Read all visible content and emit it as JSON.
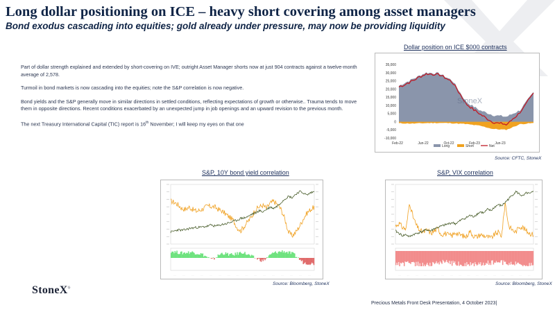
{
  "header": {
    "title": "Long dollar positioning on ICE – heavy short covering among asset managers",
    "subtitle": "Bond exodus cascading into equities; gold already under pressure, may now be providing liquidity"
  },
  "commentary": {
    "p1": "Part of dollar strength explained and extended by short-covering on IVE; outright Asset Manager shorts now at just 904 contracts against a twelve-month average of 2,578.",
    "p2": "Turmoil in bond markets is now cascading into the equities; note the S&P correlation is now negative.",
    "p3": " Bond yields and the S&P generally move in similar directions in settled conditions, reflecting expectations of growth or otherwise.. Trauma tends to move them in opposite directions.  Recent conditions exacerbated by an unexpected jump in job openings and an upward revision to the previous month.",
    "p4_pre": "The next Treasury International Capital (TIC) report is 16",
    "p4_sup": "th",
    "p4_post": " November; I will keep my eyes on that one"
  },
  "charts": {
    "dollar": {
      "title": "Dollar position on ICE $000 contracts",
      "source": "Source:  CFTC, StoneX",
      "watermark": "StoneX"
    },
    "sp_bond": {
      "title": "S&P, 10Y bond yield correlation",
      "source": "Source:  Bloomberg,  StoneX"
    },
    "sp_vix": {
      "title": "S&P, VIX correlation",
      "source": "Source:  Bloomberg,  StoneX"
    }
  },
  "chart_data": [
    {
      "type": "area",
      "title": "Dollar position on ICE $000 contracts",
      "x": [
        "Feb-22",
        "Apr-22",
        "Jun-22",
        "Aug-22",
        "Oct-22",
        "Dec-22",
        "Feb-23",
        "Apr-23",
        "Jun-23",
        "Aug-23",
        "Sep-23"
      ],
      "ylim": [
        -10000,
        35000
      ],
      "yticks": [
        35000,
        30000,
        25000,
        20000,
        15000,
        10000,
        5000,
        0,
        -5000,
        -10000
      ],
      "ytick_labels": [
        "35,000",
        "30,000",
        "25,000",
        "20,000",
        "15,000",
        "10,000",
        "5,000",
        "0",
        "-5,000",
        "-10,000"
      ],
      "xtick_labels": [
        "Feb-22",
        "Jun-22",
        "Oct-22",
        "Feb-23",
        "Jun-23"
      ],
      "series": [
        {
          "name": "Long",
          "values": [
            22000,
            26000,
            30000,
            29500,
            25000,
            12000,
            7000,
            4000,
            3000,
            7000,
            18000
          ]
        },
        {
          "name": "Short",
          "values": [
            -1000,
            -1200,
            -900,
            -800,
            -1000,
            -1500,
            -2500,
            -4500,
            -5000,
            -1500,
            -900
          ]
        },
        {
          "name": "Net",
          "values": [
            21000,
            24800,
            29100,
            28700,
            24000,
            10500,
            4500,
            -500,
            -2000,
            5500,
            17100
          ]
        }
      ],
      "legend": "bottom",
      "colors": {
        "Long": "#8a95ab",
        "Short": "#f0a220",
        "Net": "#c01a25"
      }
    },
    {
      "type": "line",
      "title": "S&P, 10Y bond yield correlation",
      "series": [
        {
          "name": "",
          "values": [
            72,
            70,
            66,
            60,
            58,
            62,
            58,
            55,
            57,
            60,
            64,
            63,
            62,
            58,
            55,
            50,
            45,
            40,
            28,
            22,
            30,
            38,
            46,
            58,
            62,
            65,
            60,
            68,
            72,
            66,
            58,
            42,
            20,
            14,
            20,
            30,
            42,
            52,
            58,
            62
          ]
        },
        {
          "name": "",
          "values": [
            20,
            22,
            24,
            23,
            24,
            26,
            27,
            28,
            28,
            29,
            30,
            32,
            30,
            31,
            33,
            34,
            36,
            38,
            40,
            43,
            44,
            46,
            50,
            52,
            56,
            54,
            58,
            62,
            60,
            64,
            70,
            76,
            80,
            78,
            84,
            88,
            86,
            82,
            86,
            88
          ]
        }
      ],
      "colors": [
        "#f0a020",
        "#4a5e2c"
      ]
    },
    {
      "type": "line",
      "title": "S&P, VIX correlation",
      "series": [
        {
          "name": "",
          "values": [
            30,
            35,
            28,
            25,
            70,
            45,
            30,
            22,
            20,
            24,
            18,
            22,
            26,
            16,
            18,
            15,
            14,
            20,
            16,
            14,
            12,
            22,
            14,
            12,
            16,
            14,
            12,
            10,
            16,
            20,
            14,
            70,
            30,
            24,
            20,
            30,
            28,
            22,
            18,
            16
          ]
        },
        {
          "name": "",
          "values": [
            22,
            18,
            14,
            16,
            12,
            16,
            18,
            20,
            22,
            24,
            22,
            26,
            28,
            30,
            32,
            34,
            36,
            34,
            38,
            42,
            44,
            48,
            46,
            50,
            54,
            52,
            58,
            56,
            62,
            66,
            64,
            70,
            76,
            82,
            88,
            84,
            80,
            86,
            84,
            88
          ]
        }
      ],
      "colors": [
        "#f0a020",
        "#4a5e2c"
      ]
    }
  ],
  "footer": {
    "logo": "StoneX",
    "presentation": "Precious Metals Front Desk Presentation, 4 October 2023|"
  }
}
